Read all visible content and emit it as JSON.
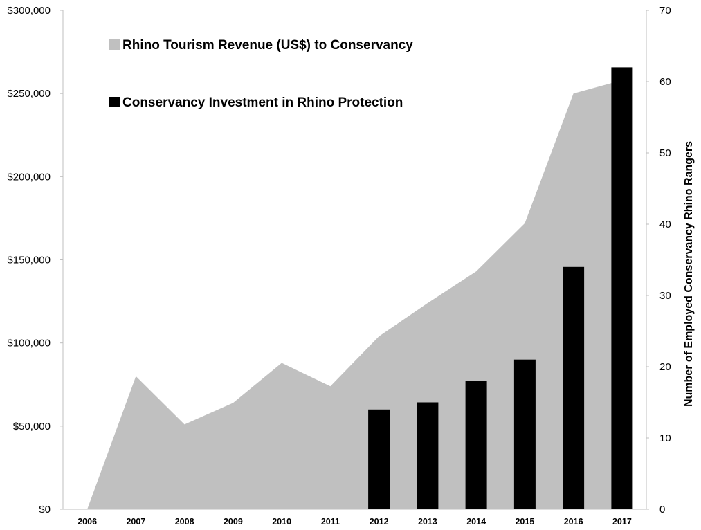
{
  "chart_data": {
    "type": "bar",
    "categories": [
      "2006",
      "2007",
      "2008",
      "2009",
      "2010",
      "2011",
      "2012",
      "2013",
      "2014",
      "2015",
      "2016",
      "2017"
    ],
    "series": [
      {
        "name": "Rhino Tourism Revenue (US$) to Conservancy",
        "type": "area",
        "axis": "left",
        "color": "#c0c0c0",
        "values": [
          0,
          80000,
          51000,
          64000,
          88000,
          74000,
          104000,
          124000,
          143000,
          172000,
          250000,
          258000
        ]
      },
      {
        "name": "Conservancy Investment in Rhino Protection",
        "type": "bar",
        "axis": "right",
        "color": "#000000",
        "values": [
          null,
          null,
          null,
          null,
          null,
          null,
          14,
          15,
          18,
          21,
          34,
          62
        ]
      }
    ],
    "left_axis": {
      "ylim": [
        0,
        300000
      ],
      "tick_values": [
        0,
        50000,
        100000,
        150000,
        200000,
        250000,
        300000
      ],
      "tick_labels": [
        "$0",
        "$50,000",
        "$100,000",
        "$150,000",
        "$200,000",
        "$250,000",
        "$300,000"
      ]
    },
    "right_axis": {
      "ylim": [
        0,
        70
      ],
      "tick_values": [
        0,
        10,
        20,
        30,
        40,
        50,
        60,
        70
      ],
      "tick_labels": [
        "0",
        "10",
        "20",
        "30",
        "40",
        "50",
        "60",
        "70"
      ],
      "label": "Number of Employed Conservancy Rhino  Rangers"
    },
    "legend": {
      "placement": "top-left",
      "entries": [
        {
          "label": "Rhino Tourism Revenue (US$) to Conservancy",
          "color": "#c0c0c0"
        },
        {
          "label": "Conservancy Investment in Rhino Protection",
          "color": "#000000"
        }
      ]
    },
    "grid": false
  }
}
